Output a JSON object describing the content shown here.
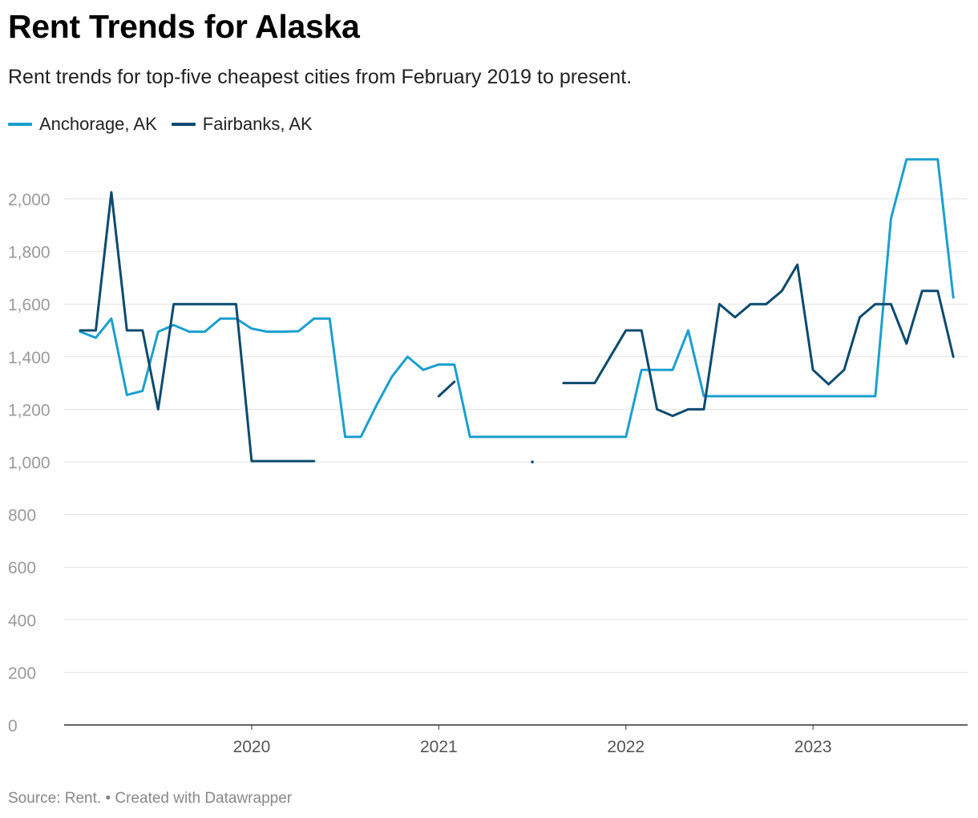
{
  "chart_data": {
    "type": "line",
    "title": "Rent Trends for Alaska",
    "subtitle": "Rent trends for top-five cheapest cities from February 2019 to present.",
    "source": "Source: Rent. • Created with Datawrapper",
    "ylim": [
      0,
      2200
    ],
    "yticks": [
      0,
      200,
      400,
      600,
      800,
      1000,
      1200,
      1400,
      1600,
      1800,
      2000
    ],
    "yticks_labels": [
      "0",
      "200",
      "400",
      "600",
      "800",
      "1,000",
      "1,200",
      "1,400",
      "1,600",
      "1,800",
      "2,000"
    ],
    "xticks": [
      "2020",
      "2021",
      "2022",
      "2023"
    ],
    "grid": true,
    "legend_position": "top-left",
    "x": [
      "2019-02",
      "2019-03",
      "2019-04",
      "2019-05",
      "2019-06",
      "2019-07",
      "2019-08",
      "2019-09",
      "2019-10",
      "2019-11",
      "2019-12",
      "2020-01",
      "2020-02",
      "2020-03",
      "2020-04",
      "2020-05",
      "2020-06",
      "2020-07",
      "2020-08",
      "2020-09",
      "2020-10",
      "2020-11",
      "2020-12",
      "2021-01",
      "2021-02",
      "2021-03",
      "2021-04",
      "2021-05",
      "2021-06",
      "2021-07",
      "2021-08",
      "2021-09",
      "2021-10",
      "2021-11",
      "2021-12",
      "2022-01",
      "2022-02",
      "2022-03",
      "2022-04",
      "2022-05",
      "2022-06",
      "2022-07",
      "2022-08",
      "2022-09",
      "2022-10",
      "2022-11",
      "2022-12",
      "2023-01",
      "2023-02",
      "2023-03",
      "2023-04",
      "2023-05",
      "2023-06",
      "2023-07",
      "2023-08",
      "2023-09",
      "2023-10"
    ],
    "series": [
      {
        "name": "Anchorage, AK",
        "color": "#1b9fcf",
        "values": [
          1495,
          1472,
          1545,
          1255,
          1270,
          1495,
          1520,
          1495,
          1495,
          1545,
          1545,
          1507,
          1495,
          1495,
          1497,
          1545,
          1545,
          1095,
          1095,
          1215,
          1325,
          1400,
          1350,
          1370,
          1370,
          1095,
          1095,
          1095,
          1095,
          1095,
          1095,
          1095,
          1095,
          1095,
          1095,
          1095,
          1350,
          1350,
          1350,
          1500,
          1250,
          1250,
          1250,
          1250,
          1250,
          1250,
          1250,
          1250,
          1250,
          1250,
          1250,
          1250,
          1925,
          2150,
          2150,
          2150,
          1625
        ]
      },
      {
        "name": "Fairbanks, AK",
        "color": "#0c4a6e",
        "values": [
          1500,
          1500,
          2025,
          1500,
          1500,
          1200,
          1600,
          1600,
          1600,
          1600,
          1600,
          1003,
          1003,
          1003,
          1003,
          1003,
          null,
          null,
          null,
          null,
          null,
          null,
          null,
          1250,
          1305,
          null,
          null,
          null,
          null,
          1000,
          null,
          1300,
          1300,
          1300,
          1400,
          1500,
          1500,
          1200,
          1175,
          1200,
          1200,
          1600,
          1550,
          1600,
          1600,
          1650,
          1750,
          1350,
          1295,
          1350,
          1550,
          1600,
          1600,
          1450,
          1650,
          1650,
          1400
        ]
      }
    ]
  }
}
